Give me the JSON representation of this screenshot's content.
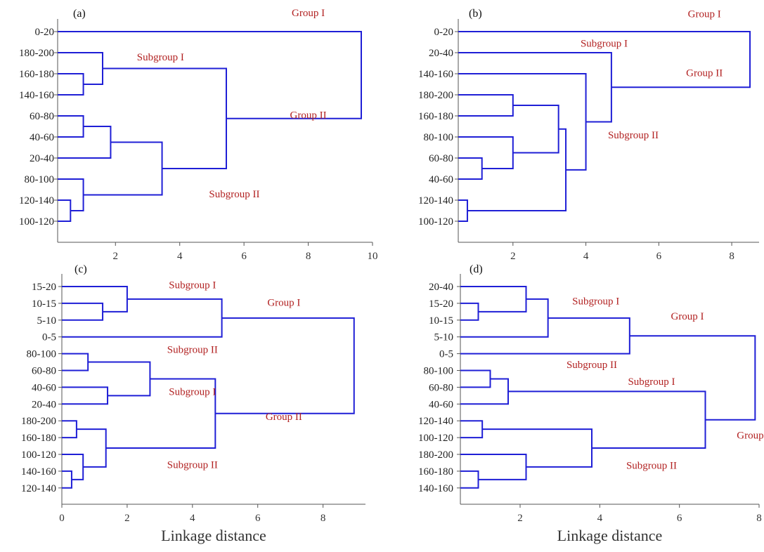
{
  "chart_data": [
    {
      "type": "dendrogram",
      "panel_label": "(a)",
      "xlabel": "",
      "xlim": [
        0.2,
        10
      ],
      "xticks": [
        2,
        4,
        6,
        8,
        10
      ],
      "leaves": [
        "0-20",
        "180-200",
        "160-180",
        "140-160",
        "60-80",
        "40-60",
        "20-40",
        "80-100",
        "120-140",
        "100-120"
      ],
      "merges": [
        {
          "a": "L8",
          "b": "L9",
          "height": 0.6
        },
        {
          "a": "L7",
          "b": "M0",
          "height": 1.0
        },
        {
          "a": "L4",
          "b": "L5",
          "height": 1.0
        },
        {
          "a": "M2",
          "b": "L6",
          "height": 1.85
        },
        {
          "a": "M3",
          "b": "M1",
          "height": 3.45
        },
        {
          "a": "L2",
          "b": "L3",
          "height": 1.0
        },
        {
          "a": "L1",
          "b": "M5",
          "height": 1.6
        },
        {
          "a": "M6",
          "b": "M4",
          "height": 5.45
        },
        {
          "a": "L0",
          "b": "M7",
          "height": 9.65
        }
      ],
      "annotations": [
        {
          "text": "Group I",
          "x": 8.0,
          "y": -0.9
        },
        {
          "text": "Subgroup I",
          "x": 3.4,
          "y": 1.2
        },
        {
          "text": "Group II",
          "x": 8.0,
          "y": 3.95
        },
        {
          "text": "Subgroup II",
          "x": 5.7,
          "y": 7.7
        }
      ]
    },
    {
      "type": "dendrogram",
      "panel_label": "(b)",
      "xlabel": "",
      "xlim": [
        0.5,
        8.75
      ],
      "xticks": [
        2,
        4,
        6,
        8
      ],
      "leaves": [
        "0-20",
        "20-40",
        "140-160",
        "180-200",
        "160-180",
        "80-100",
        "60-80",
        "40-60",
        "120-140",
        "100-120"
      ],
      "merges": [
        {
          "a": "L8",
          "b": "L9",
          "height": 0.75
        },
        {
          "a": "L6",
          "b": "L7",
          "height": 1.15
        },
        {
          "a": "L5",
          "b": "M1",
          "height": 2.0
        },
        {
          "a": "L3",
          "b": "L4",
          "height": 2.0
        },
        {
          "a": "M3",
          "b": "M2",
          "height": 3.25
        },
        {
          "a": "M4",
          "b": "M0",
          "height": 3.45
        },
        {
          "a": "L2",
          "b": "M5",
          "height": 4.0
        },
        {
          "a": "L1",
          "b": "M6",
          "height": 4.7
        },
        {
          "a": "L0",
          "b": "M7",
          "height": 8.5
        }
      ],
      "annotations": [
        {
          "text": "Group I",
          "x": 7.25,
          "y": -0.85
        },
        {
          "text": "Subgroup I",
          "x": 4.5,
          "y": 0.55
        },
        {
          "text": "Group II",
          "x": 7.25,
          "y": 1.95
        },
        {
          "text": "Subgroup II",
          "x": 5.3,
          "y": 4.9
        }
      ]
    },
    {
      "type": "dendrogram",
      "panel_label": "(c)",
      "xlabel": "Linkage distance",
      "xlim": [
        0,
        9.3
      ],
      "xticks": [
        0,
        2,
        4,
        6,
        8
      ],
      "leaves": [
        "15-20",
        "10-15",
        "5-10",
        "0-5",
        "80-100",
        "60-80",
        "40-60",
        "20-40",
        "180-200",
        "160-180",
        "100-120",
        "140-160",
        "120-140"
      ],
      "merges": [
        {
          "a": "L1",
          "b": "L2",
          "height": 1.25
        },
        {
          "a": "L0",
          "b": "M0",
          "height": 2.0
        },
        {
          "a": "M1",
          "b": "L3",
          "height": 4.9
        },
        {
          "a": "L4",
          "b": "L5",
          "height": 0.8
        },
        {
          "a": "L6",
          "b": "L7",
          "height": 1.4
        },
        {
          "a": "M3",
          "b": "M4",
          "height": 2.7
        },
        {
          "a": "L8",
          "b": "L9",
          "height": 0.45
        },
        {
          "a": "L11",
          "b": "L12",
          "height": 0.3
        },
        {
          "a": "L10",
          "b": "M7",
          "height": 0.65
        },
        {
          "a": "M6",
          "b": "M8",
          "height": 1.35
        },
        {
          "a": "M5",
          "b": "M9",
          "height": 4.7
        },
        {
          "a": "M2",
          "b": "M10",
          "height": 8.95
        }
      ],
      "annotations": [
        {
          "text": "Subgroup I",
          "x": 4.0,
          "y": -0.1
        },
        {
          "text": "Group I",
          "x": 6.8,
          "y": 0.95
        },
        {
          "text": "Subgroup II",
          "x": 4.0,
          "y": 3.75
        },
        {
          "text": "Subgroup I",
          "x": 4.0,
          "y": 6.25
        },
        {
          "text": "Group II",
          "x": 6.8,
          "y": 7.75
        },
        {
          "text": "Subgroup II",
          "x": 4.0,
          "y": 10.6
        }
      ]
    },
    {
      "type": "dendrogram",
      "panel_label": "(d)",
      "xlabel": "Linkage distance",
      "xlim": [
        0.5,
        8.0
      ],
      "xticks": [
        2,
        4,
        6,
        8
      ],
      "leaves": [
        "20-40",
        "15-20",
        "10-15",
        "5-10",
        "0-5",
        "80-100",
        "60-80",
        "40-60",
        "120-140",
        "100-120",
        "180-200",
        "160-180",
        "140-160"
      ],
      "merges": [
        {
          "a": "L1",
          "b": "L2",
          "height": 0.95
        },
        {
          "a": "L0",
          "b": "M0",
          "height": 2.15
        },
        {
          "a": "M1",
          "b": "L3",
          "height": 2.7
        },
        {
          "a": "M2",
          "b": "L4",
          "height": 4.75
        },
        {
          "a": "L5",
          "b": "L6",
          "height": 1.25
        },
        {
          "a": "M4",
          "b": "L7",
          "height": 1.7
        },
        {
          "a": "L8",
          "b": "L9",
          "height": 1.05
        },
        {
          "a": "L11",
          "b": "L12",
          "height": 0.95
        },
        {
          "a": "L10",
          "b": "M7",
          "height": 2.15
        },
        {
          "a": "M6",
          "b": "M8",
          "height": 3.8
        },
        {
          "a": "M5",
          "b": "M9",
          "height": 6.65
        },
        {
          "a": "M3",
          "b": "M10",
          "height": 7.9
        }
      ],
      "annotations": [
        {
          "text": "Subgroup I",
          "x": 3.9,
          "y": 0.85
        },
        {
          "text": "Group I",
          "x": 6.2,
          "y": 1.75
        },
        {
          "text": "Subgroup II",
          "x": 3.8,
          "y": 4.65
        },
        {
          "text": "Subgroup I",
          "x": 5.3,
          "y": 5.65
        },
        {
          "text": "Group II",
          "x": 7.9,
          "y": 8.85
        },
        {
          "text": "Subgroup II",
          "x": 5.3,
          "y": 10.65
        }
      ]
    }
  ]
}
